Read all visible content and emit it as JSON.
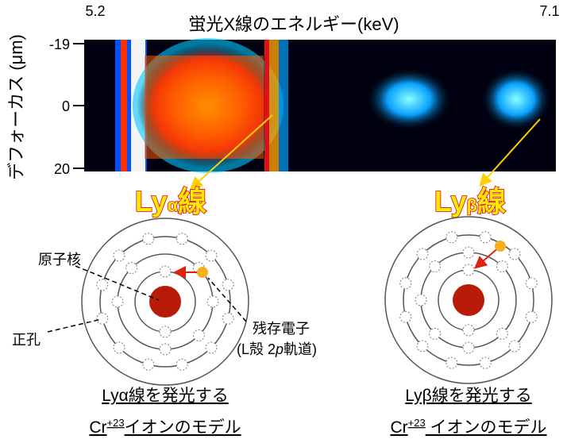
{
  "heatmap": {
    "title": "蛍光X線のエネルギー(keV)",
    "x_left": "5.2",
    "x_right": "7.1",
    "y_label": "デフォーカス (μm)",
    "y_ticks": [
      "-19",
      "0",
      "20"
    ]
  },
  "lines": {
    "alpha": {
      "ly": "Ly",
      "greek": "α",
      "sen": "線"
    },
    "beta": {
      "ly": "Ly",
      "greek": "β",
      "sen": "線"
    }
  },
  "labels": {
    "nucleus": "原子核",
    "hole": "正孔",
    "remaining": "残存電子",
    "orbital_open": "(L殻 2",
    "orbital_p": "p",
    "orbital_close": "軌道)"
  },
  "captions": {
    "alpha": {
      "line1": "Lyα線を発光する",
      "cr": "Cr",
      "charge": "+23",
      "rest": "イオンのモデル"
    },
    "beta": {
      "line1": "Lyβ線を発光する",
      "cr": "Cr",
      "charge": "+23",
      "rest": " イオンのモデル"
    }
  }
}
